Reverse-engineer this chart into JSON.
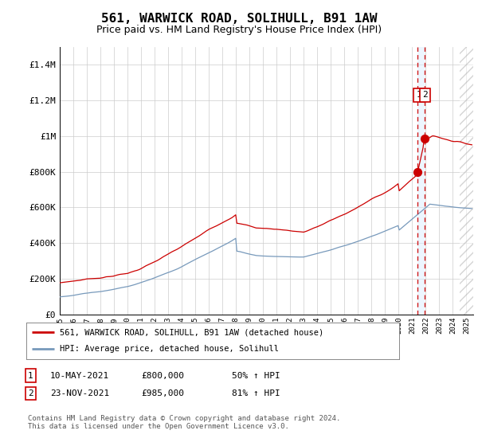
{
  "title": "561, WARWICK ROAD, SOLIHULL, B91 1AW",
  "subtitle": "Price paid vs. HM Land Registry's House Price Index (HPI)",
  "xlim_start": 1995.0,
  "xlim_end": 2025.5,
  "ylim_min": 0,
  "ylim_max": 1500000,
  "yticks": [
    0,
    200000,
    400000,
    600000,
    800000,
    1000000,
    1200000,
    1400000
  ],
  "ytick_labels": [
    "£0",
    "£200K",
    "£400K",
    "£600K",
    "£800K",
    "£1M",
    "£1.2M",
    "£1.4M"
  ],
  "title_fontsize": 11.5,
  "subtitle_fontsize": 9,
  "transaction1_date_num": 2021.37,
  "transaction1_price": 800000,
  "transaction2_date_num": 2021.9,
  "transaction2_price": 985000,
  "vline1_x": 2021.37,
  "vline2_x": 2021.9,
  "vline_color": "#cc0000",
  "vline_bg_color": "#ddeeff",
  "red_line_color": "#cc0000",
  "blue_line_color": "#7799bb",
  "marker_color": "#cc0000",
  "legend1_label": "561, WARWICK ROAD, SOLIHULL, B91 1AW (detached house)",
  "legend2_label": "HPI: Average price, detached house, Solihull",
  "table_row1": [
    "1",
    "10-MAY-2021",
    "£800,000",
    "50% ↑ HPI"
  ],
  "table_row2": [
    "2",
    "23-NOV-2021",
    "£985,000",
    "81% ↑ HPI"
  ],
  "footer": "Contains HM Land Registry data © Crown copyright and database right 2024.\nThis data is licensed under the Open Government Licence v3.0.",
  "background_color": "#ffffff",
  "grid_color": "#cccccc",
  "annotation_box_color": "#cc0000",
  "hatch_start": 2024.5
}
